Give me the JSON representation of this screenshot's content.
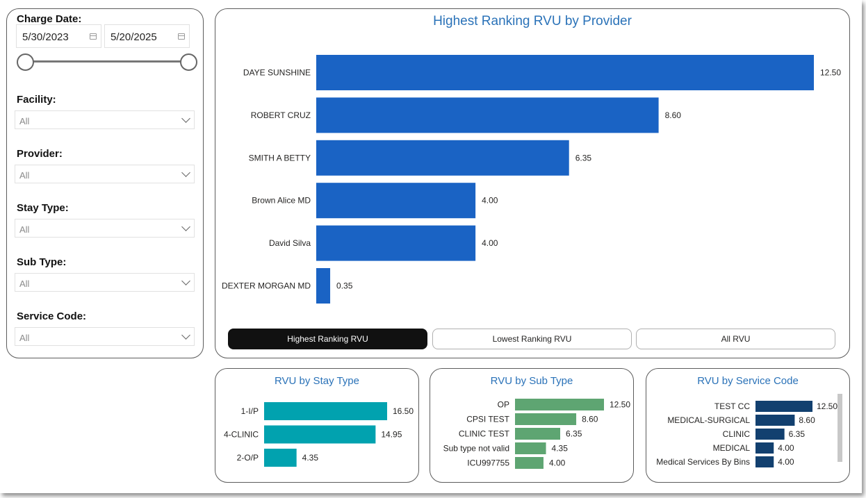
{
  "filters": {
    "charge_date_label": "Charge Date:",
    "date_start": "5/30/2023",
    "date_end": "5/20/2025",
    "dropdowns": [
      {
        "label": "Facility:",
        "value": "All"
      },
      {
        "label": "Provider:",
        "value": "All"
      },
      {
        "label": "Stay Type:",
        "value": "All"
      },
      {
        "label": "Sub Type:",
        "value": "All"
      },
      {
        "label": "Service Code:",
        "value": "All"
      }
    ]
  },
  "tabs": {
    "highest": "Highest Ranking RVU",
    "lowest": "Lowest Ranking RVU",
    "all": "All RVU"
  },
  "colors": {
    "main_bar": "#1a63c4",
    "stay_bar": "#01a2af",
    "sub_bar": "#5ea572",
    "svc_bar": "#12406f"
  },
  "chart_data": [
    {
      "id": "provider",
      "type": "bar",
      "orientation": "horizontal",
      "title": "Highest Ranking RVU by Provider",
      "categories": [
        "DAYE SUNSHINE",
        "ROBERT CRUZ",
        "SMITH A BETTY",
        "Brown Alice MD",
        "David Silva",
        "DEXTER MORGAN MD"
      ],
      "values": [
        12.5,
        8.6,
        6.35,
        4.0,
        4.0,
        0.35
      ],
      "labels": [
        "12.50",
        "8.60",
        "6.35",
        "4.00",
        "4.00",
        "0.35"
      ],
      "xlim": [
        0,
        12.5
      ]
    },
    {
      "id": "stay",
      "type": "bar",
      "orientation": "horizontal",
      "title": "RVU by Stay Type",
      "categories": [
        "1-I/P",
        "4-CLINIC",
        "2-O/P"
      ],
      "values": [
        16.5,
        14.95,
        4.35
      ],
      "labels": [
        "16.50",
        "14.95",
        "4.35"
      ],
      "xlim": [
        0,
        16.5
      ]
    },
    {
      "id": "sub",
      "type": "bar",
      "orientation": "horizontal",
      "title": "RVU by Sub Type",
      "categories": [
        "OP",
        "CPSI TEST",
        "CLINIC TEST",
        "Sub type not valid",
        "ICU997755"
      ],
      "values": [
        12.5,
        8.6,
        6.35,
        4.35,
        4.0
      ],
      "labels": [
        "12.50",
        "8.60",
        "6.35",
        "4.35",
        "4.00"
      ],
      "xlim": [
        0,
        12.5
      ]
    },
    {
      "id": "svc",
      "type": "bar",
      "orientation": "horizontal",
      "title": "RVU by Service Code",
      "categories": [
        "TEST CC",
        "MEDICAL-SURGICAL",
        "CLINIC",
        "MEDICAL",
        "Medical Services By Bins"
      ],
      "values": [
        12.5,
        8.6,
        6.35,
        4.0,
        4.0
      ],
      "labels": [
        "12.50",
        "8.60",
        "6.35",
        "4.00",
        "4.00"
      ],
      "xlim": [
        0,
        12.5
      ]
    }
  ]
}
